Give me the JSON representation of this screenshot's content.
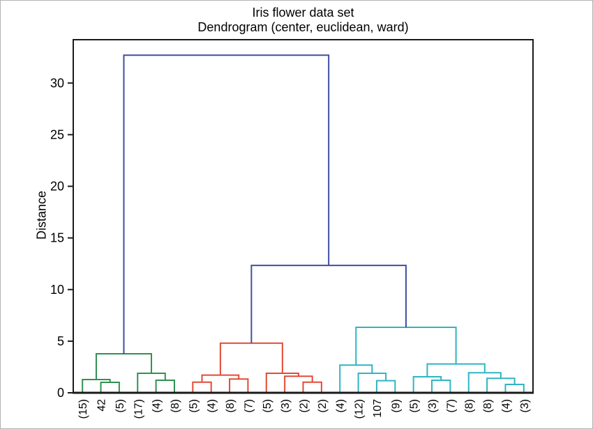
{
  "chart_data": {
    "type": "dendrogram",
    "title": "Iris flower data set",
    "subtitle": "Dendrogram (center, euclidean, ward)",
    "ylabel": "Distance",
    "yticks": [
      0,
      5,
      10,
      15,
      20,
      25,
      30
    ],
    "ylim": [
      0,
      34.2
    ],
    "grid": false,
    "leaf_labels": [
      "(15)",
      "42",
      "(5)",
      "(17)",
      "(4)",
      "(8)",
      "(5)",
      "(4)",
      "(8)",
      "(7)",
      "(5)",
      "(3)",
      "(2)",
      "(2)",
      "(4)",
      "(12)",
      "107",
      "(9)",
      "(5)",
      "(3)",
      "(7)",
      "(8)",
      "(8)",
      "(4)",
      "(3)"
    ],
    "colors": {
      "green": "#2f9150",
      "red": "#e14b34",
      "cyan": "#30b4c4",
      "blue": "#3e4fa0",
      "frame": "#1a1a1a",
      "text": "#000000"
    },
    "links": [
      {
        "id": "G1",
        "a": "L2",
        "b": "L3",
        "h": 1.01,
        "color": "green"
      },
      {
        "id": "G2",
        "a": "L1",
        "b": "G1",
        "h": 1.28,
        "color": "green"
      },
      {
        "id": "G3",
        "a": "L5",
        "b": "L6",
        "h": 1.21,
        "color": "green"
      },
      {
        "id": "G4",
        "a": "L4",
        "b": "G3",
        "h": 1.89,
        "color": "green"
      },
      {
        "id": "G5",
        "a": "G2",
        "b": "G4",
        "h": 3.78,
        "color": "green"
      },
      {
        "id": "R1",
        "a": "L7",
        "b": "L8",
        "h": 1.03,
        "color": "red"
      },
      {
        "id": "R2",
        "a": "L9",
        "b": "L10",
        "h": 1.33,
        "color": "red"
      },
      {
        "id": "R3",
        "a": "R1",
        "b": "R2",
        "h": 1.71,
        "color": "red"
      },
      {
        "id": "R4",
        "a": "L13",
        "b": "L14",
        "h": 1.03,
        "color": "red"
      },
      {
        "id": "R5",
        "a": "L12",
        "b": "R4",
        "h": 1.6,
        "color": "red"
      },
      {
        "id": "R6",
        "a": "L11",
        "b": "R5",
        "h": 1.89,
        "color": "red"
      },
      {
        "id": "R7",
        "a": "R3",
        "b": "R6",
        "h": 4.81,
        "color": "red"
      },
      {
        "id": "C1",
        "a": "L17",
        "b": "L18",
        "h": 1.17,
        "color": "cyan"
      },
      {
        "id": "C2",
        "a": "L16",
        "b": "C1",
        "h": 1.89,
        "color": "cyan"
      },
      {
        "id": "C3",
        "a": "L15",
        "b": "C2",
        "h": 2.68,
        "color": "cyan"
      },
      {
        "id": "C4",
        "a": "L20",
        "b": "L21",
        "h": 1.21,
        "color": "cyan"
      },
      {
        "id": "C5",
        "a": "L19",
        "b": "C4",
        "h": 1.55,
        "color": "cyan"
      },
      {
        "id": "C6",
        "a": "L24",
        "b": "L25",
        "h": 0.81,
        "color": "cyan"
      },
      {
        "id": "C7",
        "a": "L23",
        "b": "C6",
        "h": 1.4,
        "color": "cyan"
      },
      {
        "id": "C8",
        "a": "L22",
        "b": "C7",
        "h": 1.94,
        "color": "cyan"
      },
      {
        "id": "C9",
        "a": "C5",
        "b": "C8",
        "h": 2.79,
        "color": "cyan"
      },
      {
        "id": "C10",
        "a": "C3",
        "b": "C9",
        "h": 6.34,
        "color": "cyan"
      },
      {
        "id": "B1",
        "a": "R7",
        "b": "C10",
        "h": 12.34,
        "color": "blue"
      },
      {
        "id": "B2",
        "a": "G5",
        "b": "B1",
        "h": 32.7,
        "color": "blue"
      }
    ]
  }
}
